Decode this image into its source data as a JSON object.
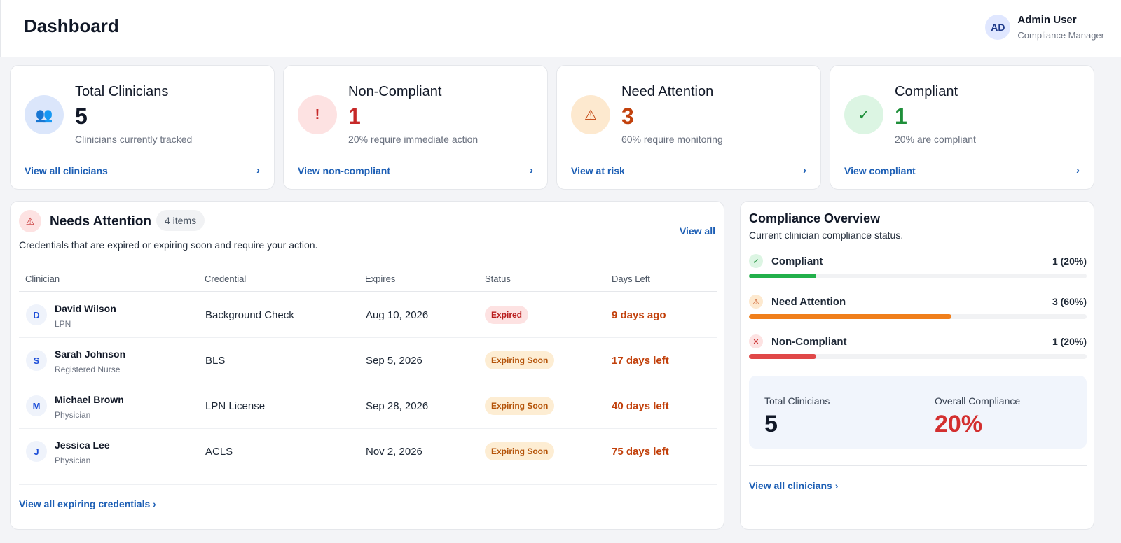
{
  "header": {
    "title": "Dashboard",
    "user": {
      "initials": "AD",
      "name": "Admin User",
      "role": "Compliance Manager"
    }
  },
  "stats": [
    {
      "title": "Total Clinicians",
      "value": "5",
      "sub": "Clinicians currently tracked",
      "link": "View all clinicians",
      "chevron": "›",
      "icon": "users-icon",
      "icon_glyph": "👥",
      "color": "#111827",
      "icon_bg": "#dbe6fb",
      "icon_color": "#4c2e8f"
    },
    {
      "title": "Non-Compliant",
      "value": "1",
      "sub": "20% require immediate action",
      "link": "View non-compliant",
      "chevron": "›",
      "icon": "exclamation-icon",
      "icon_glyph": "!",
      "color": "#c62828",
      "icon_bg": "#fde2e2",
      "icon_color": "#c62828"
    },
    {
      "title": "Need Attention",
      "value": "3",
      "sub": "60% require monitoring",
      "link": "View at risk",
      "chevron": "›",
      "icon": "warning-icon",
      "icon_glyph": "⚠",
      "color": "#c2410c",
      "icon_bg": "#fde9cf",
      "icon_color": "#c2410c"
    },
    {
      "title": "Compliant",
      "value": "1",
      "sub": "20% are compliant",
      "link": "View compliant",
      "chevron": "›",
      "icon": "check-icon",
      "icon_glyph": "✓",
      "color": "#1f8f3a",
      "icon_bg": "#dcf5e3",
      "icon_color": "#1f8f3a"
    }
  ],
  "attention": {
    "title": "Needs Attention",
    "count": "4 items",
    "view_all": "View all",
    "description": "Credentials that are expired or expiring soon and require your action.",
    "columns": [
      "Clinician",
      "Credential",
      "Expires",
      "Status",
      "Days Left"
    ],
    "rows": [
      {
        "initial": "D",
        "name": "David Wilson",
        "role": "LPN",
        "credential": "Background Check",
        "expires": "Aug 10, 2026",
        "status": "Expired",
        "status_kind": "expired",
        "days": "9 days ago"
      },
      {
        "initial": "S",
        "name": "Sarah Johnson",
        "role": "Registered Nurse",
        "credential": "BLS",
        "expires": "Sep 5, 2026",
        "status": "Expiring Soon",
        "status_kind": "soon",
        "days": "17 days left"
      },
      {
        "initial": "M",
        "name": "Michael Brown",
        "role": "Physician",
        "credential": "LPN License",
        "expires": "Sep 28, 2026",
        "status": "Expiring Soon",
        "status_kind": "soon",
        "days": "40 days left"
      },
      {
        "initial": "J",
        "name": "Jessica Lee",
        "role": "Physician",
        "credential": "ACLS",
        "expires": "Nov 2, 2026",
        "status": "Expiring Soon",
        "status_kind": "soon",
        "days": "75 days left"
      }
    ],
    "footer_link": "View all expiring credentials ›"
  },
  "overview": {
    "title": "Compliance Overview",
    "subtitle": "Current clinician compliance status.",
    "items": [
      {
        "label": "Compliant",
        "value": "1 (20%)",
        "fraction": 0.2,
        "icon": "check-icon",
        "glyph": "✓",
        "color": "#22b04b",
        "icon_bg": "#dcf5e3",
        "icon_color": "#1f8f3a"
      },
      {
        "label": "Need Attention",
        "value": "3 (60%)",
        "fraction": 0.6,
        "icon": "warning-icon",
        "glyph": "⚠",
        "color": "#f07f1b",
        "icon_bg": "#fde9cf",
        "icon_color": "#c2410c"
      },
      {
        "label": "Non-Compliant",
        "value": "1 (20%)",
        "fraction": 0.2,
        "icon": "x-icon",
        "glyph": "✕",
        "color": "#e04848",
        "icon_bg": "#fde2e2",
        "icon_color": "#c62828"
      }
    ],
    "summary": {
      "total_label": "Total Clinicians",
      "total_value": "5",
      "overall_label": "Overall Compliance",
      "overall_value": "20%",
      "overall_color": "#d32f2f"
    },
    "footer_link": "View all clinicians ›"
  }
}
